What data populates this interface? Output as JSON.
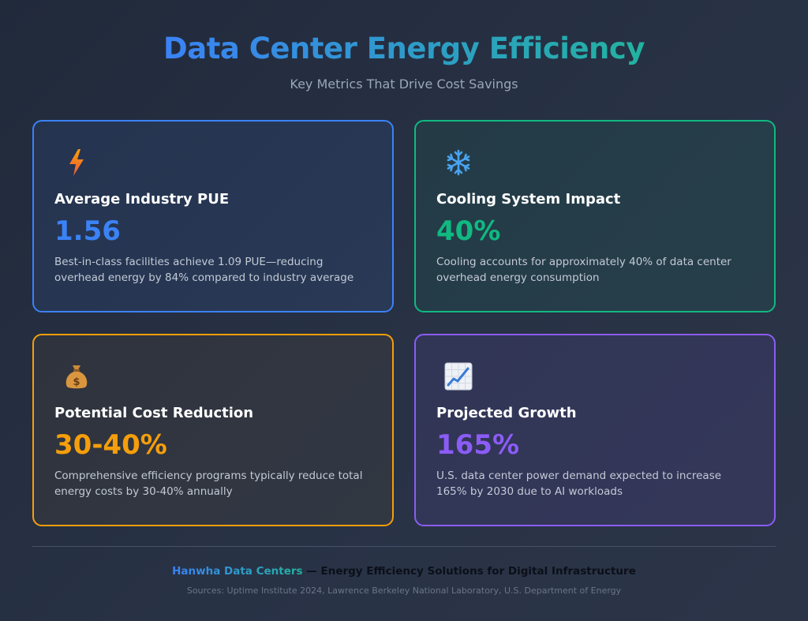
{
  "header": {
    "title": "Data Center Energy Efficiency",
    "subtitle": "Key Metrics That Drive Cost Savings"
  },
  "cards": [
    {
      "icon": "lightning-bolt-icon",
      "title": "Average Industry PUE",
      "value": "1.56",
      "description": "Best-in-class facilities achieve 1.09 PUE—reducing overhead energy by 84% compared to industry average",
      "color": "#3b82f6"
    },
    {
      "icon": "snowflake-icon",
      "title": "Cooling System Impact",
      "value": "40%",
      "description": "Cooling accounts for approximately 40% of data center overhead energy consumption",
      "color": "#10b981"
    },
    {
      "icon": "money-bag-icon",
      "title": "Potential Cost Reduction",
      "value": "30-40%",
      "description": "Comprehensive efficiency programs typically reduce total energy costs by 30-40% annually",
      "color": "#f59e0b"
    },
    {
      "icon": "chart-increasing-icon",
      "title": "Projected Growth",
      "value": "165%",
      "description": "U.S. data center power demand expected to increase 165% by 2030 due to AI workloads",
      "color": "#8b5cf6"
    }
  ],
  "footer": {
    "brand": "Hanwha Data Centers",
    "tagline": " — Energy Efficiency Solutions for Digital Infrastructure",
    "sources": "Sources: Uptime Institute 2024, Lawrence Berkeley National Laboratory, U.S. Department of Energy"
  }
}
